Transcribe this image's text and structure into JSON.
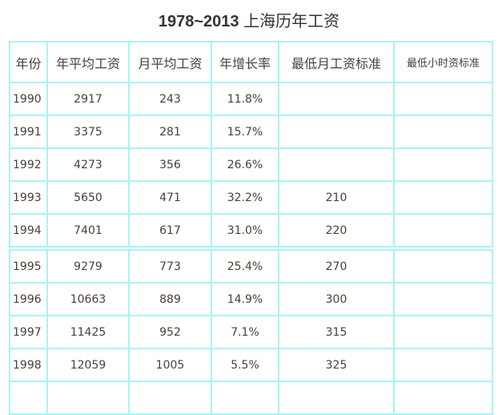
{
  "title": {
    "years": "1978~2013",
    "text": "上海历年工资"
  },
  "table": {
    "headers": [
      "年份",
      "年平均工资",
      "月平均工资",
      "年增长率",
      "最低月工资标准",
      "最低小时资标准"
    ],
    "rows_part1": [
      [
        "1990",
        "2917",
        "243",
        "11.8%",
        "",
        ""
      ],
      [
        "1991",
        "3375",
        "281",
        "15.7%",
        "",
        ""
      ],
      [
        "1992",
        "4273",
        "356",
        "26.6%",
        "",
        ""
      ],
      [
        "1993",
        "5650",
        "471",
        "32.2%",
        "210",
        ""
      ],
      [
        "1994",
        "7401",
        "617",
        "31.0%",
        "220",
        ""
      ]
    ],
    "rows_part2": [
      [
        "1995",
        "9279",
        "773",
        "25.4%",
        "270",
        ""
      ],
      [
        "1996",
        "10663",
        "889",
        "14.9%",
        "300",
        ""
      ],
      [
        "1997",
        "11425",
        "952",
        "7.1%",
        "315",
        ""
      ],
      [
        "1998",
        "12059",
        "1005",
        "5.5%",
        "325",
        ""
      ],
      [
        "",
        "",
        "",
        "",
        "",
        ""
      ]
    ]
  },
  "colors": {
    "border": "#a8f4f6",
    "text": "#4a3f36"
  }
}
